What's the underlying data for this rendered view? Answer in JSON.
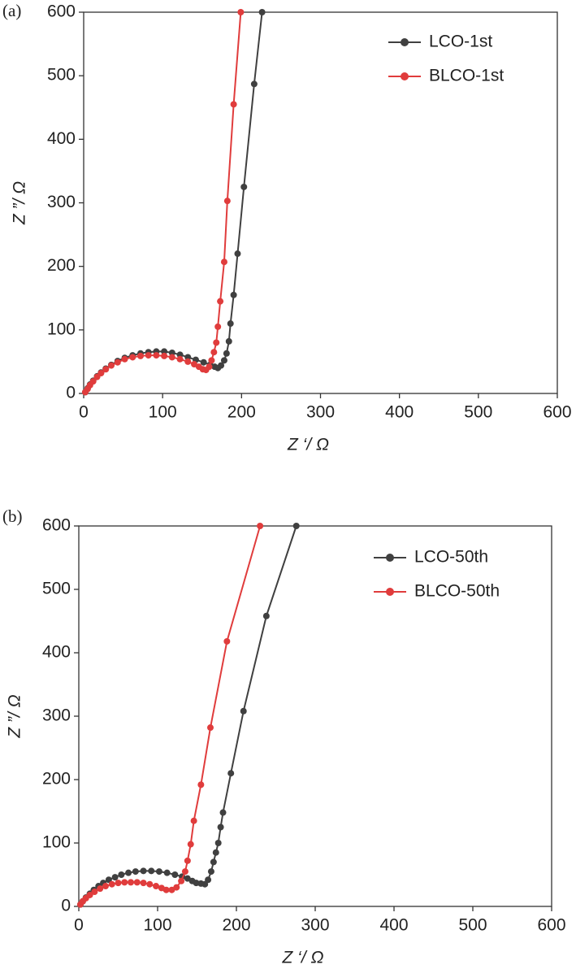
{
  "chart_data": [
    {
      "type": "line",
      "panel_label": "(a)",
      "x_label": "Z ‘/ Ω",
      "y_label": "Z ”/ Ω",
      "xlim": [
        0,
        600
      ],
      "ylim": [
        0,
        600
      ],
      "xticks": [
        0,
        100,
        200,
        300,
        400,
        500,
        600
      ],
      "yticks": [
        0,
        100,
        200,
        300,
        400,
        500,
        600
      ],
      "legend": "upper right",
      "series": [
        {
          "name": "LCO-1st",
          "color": "#404040",
          "x": [
            2,
            5,
            8,
            12,
            17,
            22,
            28,
            35,
            43,
            52,
            62,
            72,
            82,
            92,
            102,
            112,
            122,
            132,
            142,
            152,
            160,
            166,
            170,
            174,
            178,
            181,
            184,
            186,
            190,
            195,
            203,
            216,
            226
          ],
          "values": [
            2,
            8,
            14,
            20,
            27,
            33,
            39,
            45,
            51,
            56,
            60,
            63,
            65,
            66,
            66,
            64,
            61,
            57,
            53,
            49,
            45,
            42,
            40,
            44,
            52,
            63,
            82,
            110,
            155,
            220,
            325,
            487,
            600
          ]
        },
        {
          "name": "BLCO-1st",
          "color": "#e03c3c",
          "x": [
            2,
            5,
            8,
            12,
            17,
            22,
            28,
            35,
            43,
            52,
            62,
            72,
            82,
            92,
            102,
            112,
            122,
            132,
            140,
            146,
            151,
            155,
            159,
            162,
            165,
            168,
            170,
            173,
            178,
            182,
            190,
            199
          ],
          "values": [
            2,
            7,
            13,
            19,
            26,
            32,
            38,
            44,
            49,
            54,
            57,
            59,
            60,
            60,
            59,
            57,
            54,
            50,
            46,
            42,
            38,
            37,
            42,
            52,
            65,
            80,
            105,
            145,
            207,
            303,
            455,
            600
          ]
        }
      ]
    },
    {
      "type": "line",
      "panel_label": "(b)",
      "x_label": "Z ‘/ Ω",
      "y_label": "Z ”/ Ω",
      "xlim": [
        0,
        600
      ],
      "ylim": [
        0,
        600
      ],
      "xticks": [
        0,
        100,
        200,
        300,
        400,
        500,
        600
      ],
      "yticks": [
        0,
        100,
        200,
        300,
        400,
        500,
        600
      ],
      "legend": "upper right",
      "series": [
        {
          "name": "LCO-50th",
          "color": "#404040",
          "x": [
            2,
            5,
            9,
            14,
            19,
            25,
            31,
            38,
            46,
            54,
            63,
            72,
            82,
            92,
            102,
            112,
            122,
            131,
            138,
            144,
            149,
            155,
            160,
            164,
            168,
            171,
            174,
            177,
            180,
            183,
            193,
            209,
            238,
            276
          ],
          "values": [
            3,
            8,
            14,
            20,
            26,
            32,
            37,
            42,
            46,
            50,
            53,
            55,
            56,
            56,
            55,
            53,
            50,
            47,
            44,
            40,
            37,
            36,
            35,
            42,
            55,
            70,
            85,
            100,
            125,
            148,
            210,
            308,
            458,
            600
          ]
        },
        {
          "name": "BLCO-50th",
          "color": "#e03c3c",
          "x": [
            2,
            5,
            9,
            14,
            20,
            27,
            34,
            42,
            50,
            58,
            66,
            74,
            82,
            90,
            98,
            105,
            111,
            118,
            124,
            130,
            135,
            138,
            142,
            146,
            155,
            167,
            188,
            230
          ],
          "values": [
            3,
            8,
            13,
            18,
            23,
            28,
            32,
            35,
            37,
            38,
            38,
            38,
            37,
            35,
            32,
            29,
            26,
            26,
            30,
            40,
            55,
            72,
            98,
            135,
            192,
            282,
            418,
            600
          ]
        }
      ]
    }
  ]
}
